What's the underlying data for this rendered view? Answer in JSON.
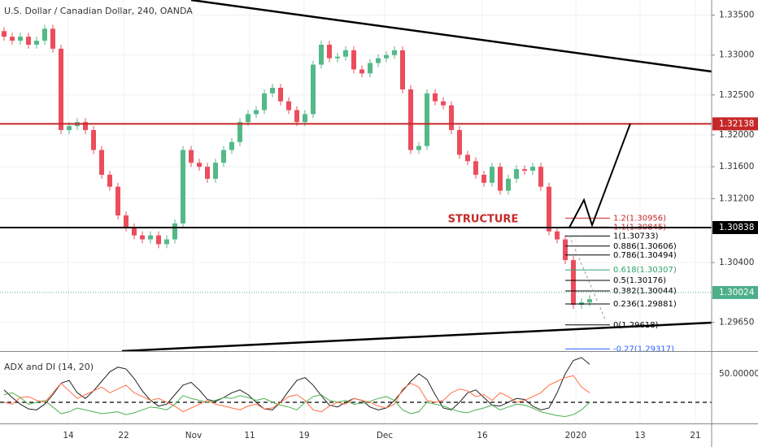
{
  "chart_data": [
    {
      "type": "candlestick",
      "title": "U.S. Dollar / Canadian Dollar, 240, OANDA",
      "open": [
        1.333,
        1.3323,
        1.3318,
        1.3323,
        1.3313,
        1.3318,
        1.3333,
        1.3308,
        1.3206,
        1.3211,
        1.3216,
        1.3206,
        1.3181,
        1.315,
        1.3135,
        1.3099,
        1.3084,
        1.3074,
        1.3069,
        1.3074,
        1.3063,
        1.3069,
        1.3089,
        1.3181,
        1.3165,
        1.316,
        1.3145,
        1.3165,
        1.3181,
        1.3191,
        1.3216,
        1.3226,
        1.3231,
        1.3252,
        1.3259,
        1.3242,
        1.3231,
        1.3216,
        1.3226,
        1.3288,
        1.3313,
        1.3296,
        1.3298,
        1.3306,
        1.3282,
        1.3277,
        1.329,
        1.3296,
        1.33,
        1.3306,
        1.3257,
        1.3181,
        1.3186,
        1.3252,
        1.3242,
        1.3237,
        1.3206,
        1.3175,
        1.3167,
        1.315,
        1.314,
        1.316,
        1.313,
        1.3145,
        1.3157,
        1.3155,
        1.316,
        1.3135,
        1.3079,
        1.3069,
        1.3043,
        1.2987,
        1.299
      ],
      "high": [
        1.3335,
        1.3328,
        1.3328,
        1.3328,
        1.3323,
        1.3338,
        1.3338,
        1.3313,
        1.3216,
        1.3221,
        1.3221,
        1.3211,
        1.3186,
        1.3155,
        1.314,
        1.3104,
        1.3089,
        1.3079,
        1.3079,
        1.3079,
        1.3074,
        1.3094,
        1.3186,
        1.3186,
        1.317,
        1.3165,
        1.317,
        1.3186,
        1.3196,
        1.3221,
        1.3231,
        1.3236,
        1.3257,
        1.3264,
        1.3264,
        1.3247,
        1.3236,
        1.3231,
        1.3293,
        1.3318,
        1.3318,
        1.3303,
        1.3311,
        1.3311,
        1.3287,
        1.3295,
        1.3301,
        1.3305,
        1.3311,
        1.3311,
        1.3262,
        1.3191,
        1.3257,
        1.3257,
        1.3247,
        1.3242,
        1.3211,
        1.318,
        1.3172,
        1.3155,
        1.3165,
        1.3165,
        1.315,
        1.3162,
        1.3162,
        1.3165,
        1.3165,
        1.314,
        1.3084,
        1.3074,
        1.3048,
        1.2995,
        1.2999
      ],
      "low": [
        1.3318,
        1.3313,
        1.3313,
        1.3308,
        1.3308,
        1.3313,
        1.3303,
        1.3201,
        1.3201,
        1.3206,
        1.3201,
        1.3176,
        1.3145,
        1.313,
        1.3094,
        1.3079,
        1.3069,
        1.3064,
        1.3064,
        1.3058,
        1.3058,
        1.3064,
        1.3084,
        1.316,
        1.3155,
        1.314,
        1.314,
        1.316,
        1.3176,
        1.3186,
        1.3211,
        1.3221,
        1.3226,
        1.3247,
        1.3237,
        1.3226,
        1.3211,
        1.3211,
        1.3221,
        1.3283,
        1.3291,
        1.3291,
        1.3293,
        1.3277,
        1.3272,
        1.3272,
        1.3285,
        1.3291,
        1.3295,
        1.3252,
        1.3176,
        1.3176,
        1.3181,
        1.3237,
        1.3232,
        1.3201,
        1.317,
        1.3162,
        1.3145,
        1.3135,
        1.3135,
        1.3125,
        1.3125,
        1.314,
        1.315,
        1.315,
        1.313,
        1.3074,
        1.3064,
        1.3038,
        1.2982,
        1.2982,
        1.2985
      ],
      "close": [
        1.3323,
        1.3318,
        1.3323,
        1.3313,
        1.3318,
        1.3333,
        1.3308,
        1.3206,
        1.3211,
        1.3216,
        1.3206,
        1.3181,
        1.315,
        1.3135,
        1.3099,
        1.3084,
        1.3074,
        1.3069,
        1.3074,
        1.3063,
        1.3069,
        1.3089,
        1.3181,
        1.3165,
        1.316,
        1.3145,
        1.3165,
        1.3181,
        1.3191,
        1.3216,
        1.3226,
        1.3231,
        1.3252,
        1.3259,
        1.3242,
        1.3231,
        1.3216,
        1.3226,
        1.3288,
        1.3313,
        1.3296,
        1.3298,
        1.3306,
        1.3282,
        1.3277,
        1.329,
        1.3296,
        1.33,
        1.3306,
        1.3257,
        1.3181,
        1.3186,
        1.3252,
        1.3242,
        1.3237,
        1.3206,
        1.3175,
        1.3167,
        1.315,
        1.314,
        1.316,
        1.313,
        1.3145,
        1.3157,
        1.3155,
        1.316,
        1.3135,
        1.3079,
        1.3069,
        1.3043,
        1.2987,
        1.299,
        1.2994
      ],
      "up_color": "#53b987",
      "down_color": "#eb4d5c",
      "xlim": [
        -0.5,
        87
      ],
      "xticks": [
        {
          "value": 7.9,
          "label": "14"
        },
        {
          "value": 14.7,
          "label": "22"
        },
        {
          "value": 23.3,
          "label": "Nov"
        },
        {
          "value": 30.2,
          "label": "11"
        },
        {
          "value": 36.9,
          "label": "19"
        },
        {
          "value": 46.8,
          "label": "Dec"
        },
        {
          "value": 58.8,
          "label": "16"
        },
        {
          "value": 70.3,
          "label": "2020"
        },
        {
          "value": 78.2,
          "label": "13"
        },
        {
          "value": 85,
          "label": "21"
        }
      ],
      "ylim": [
        1.2929,
        1.3369
      ],
      "yticks": [
        {
          "value": 1.335,
          "label": "1.33500"
        },
        {
          "value": 1.33,
          "label": "1.33000"
        },
        {
          "value": 1.325,
          "label": "1.32500"
        },
        {
          "value": 1.32,
          "label": "1.32000"
        },
        {
          "value": 1.316,
          "label": "1.31600"
        },
        {
          "value": 1.312,
          "label": "1.31200"
        },
        {
          "value": 1.304,
          "label": "1.30400"
        },
        {
          "value": 1.2965,
          "label": "1.29650"
        }
      ],
      "grid": true,
      "hlines": [
        {
          "value": 1.32138,
          "label": "1.32138",
          "color": "#c62828",
          "style": "solid"
        },
        {
          "value": 1.30838,
          "label": "1.30838",
          "color": "#000000",
          "style": "solid"
        },
        {
          "value": 1.30024,
          "label": "1.30024",
          "color": "#4caf8a",
          "style": "dotted"
        }
      ],
      "fib_levels": [
        {
          "value": 1.30956,
          "label": "1.2(1.30956)",
          "color": "#c62828"
        },
        {
          "value": 1.30845,
          "label": "1.1(1.30845)",
          "color": "#c62828"
        },
        {
          "value": 1.30733,
          "label": "1(1.30733)",
          "color": "#000000"
        },
        {
          "value": 1.30606,
          "label": "0.886(1.30606)",
          "color": "#000000"
        },
        {
          "value": 1.30494,
          "label": "0.786(1.30494)",
          "color": "#000000"
        },
        {
          "value": 1.30307,
          "label": "0.618(1.30307)",
          "color": "#2e9e6b"
        },
        {
          "value": 1.30176,
          "label": "0.5(1.30176)",
          "color": "#000000"
        },
        {
          "value": 1.30044,
          "label": "0.382(1.30044)",
          "color": "#000000"
        },
        {
          "value": 1.29881,
          "label": "0.236(1.29881)",
          "color": "#000000"
        },
        {
          "value": 1.29618,
          "label": "0(1.29618)",
          "color": "#000000"
        },
        {
          "value": 1.29317,
          "label": "-0.27(1.29317)",
          "color": "#2962ff"
        }
      ],
      "annotation": "STRUCTURE"
    },
    {
      "type": "line",
      "title": "ADX and DI (14, 20)",
      "ylim": [
        -1.4,
        73
      ],
      "yticks": [
        {
          "value": 50,
          "label": "50.00000"
        }
      ],
      "level": 20,
      "series": [
        {
          "color": "#222222",
          "values": [
            33,
            25,
            18,
            13,
            12,
            18,
            28,
            40,
            43,
            30,
            24,
            32,
            42,
            52,
            57,
            55,
            45,
            32,
            22,
            16,
            18,
            28,
            38,
            41,
            33,
            23,
            21,
            25,
            30,
            33,
            28,
            20,
            13,
            12,
            20,
            32,
            43,
            46,
            38,
            27,
            17,
            15,
            20,
            24,
            22,
            15,
            12,
            14,
            22,
            32,
            42,
            50,
            44,
            28,
            14,
            12,
            20,
            30,
            33,
            25,
            17,
            16,
            20,
            24,
            23,
            16,
            12,
            14,
            30,
            50,
            64,
            67,
            60
          ]
        },
        {
          "color": "#4caf50",
          "values": [
            28,
            30,
            25,
            18,
            20,
            22,
            15,
            8,
            10,
            14,
            12,
            10,
            8,
            9,
            10,
            7,
            9,
            12,
            15,
            14,
            12,
            18,
            27,
            24,
            22,
            20,
            22,
            25,
            24,
            27,
            25,
            22,
            24,
            20,
            17,
            15,
            12,
            20,
            26,
            28,
            22,
            20,
            22,
            18,
            19,
            21,
            24,
            26,
            22,
            12,
            8,
            10,
            20,
            18,
            16,
            13,
            10,
            9,
            12,
            14,
            17,
            12,
            15,
            18,
            17,
            14,
            10,
            8,
            6,
            5,
            7,
            12,
            20
          ]
        },
        {
          "color": "#ff7043",
          "values": [
            20,
            18,
            25,
            26,
            22,
            20,
            30,
            40,
            32,
            24,
            28,
            32,
            36,
            30,
            34,
            38,
            30,
            26,
            22,
            24,
            20,
            16,
            10,
            14,
            18,
            22,
            18,
            16,
            14,
            12,
            16,
            18,
            13,
            14,
            20,
            26,
            28,
            22,
            12,
            10,
            16,
            20,
            18,
            24,
            22,
            20,
            16,
            14,
            18,
            34,
            40,
            36,
            22,
            20,
            22,
            30,
            34,
            32,
            26,
            28,
            22,
            30,
            26,
            20,
            22,
            26,
            30,
            38,
            42,
            46,
            48,
            36,
            30
          ]
        }
      ]
    }
  ]
}
